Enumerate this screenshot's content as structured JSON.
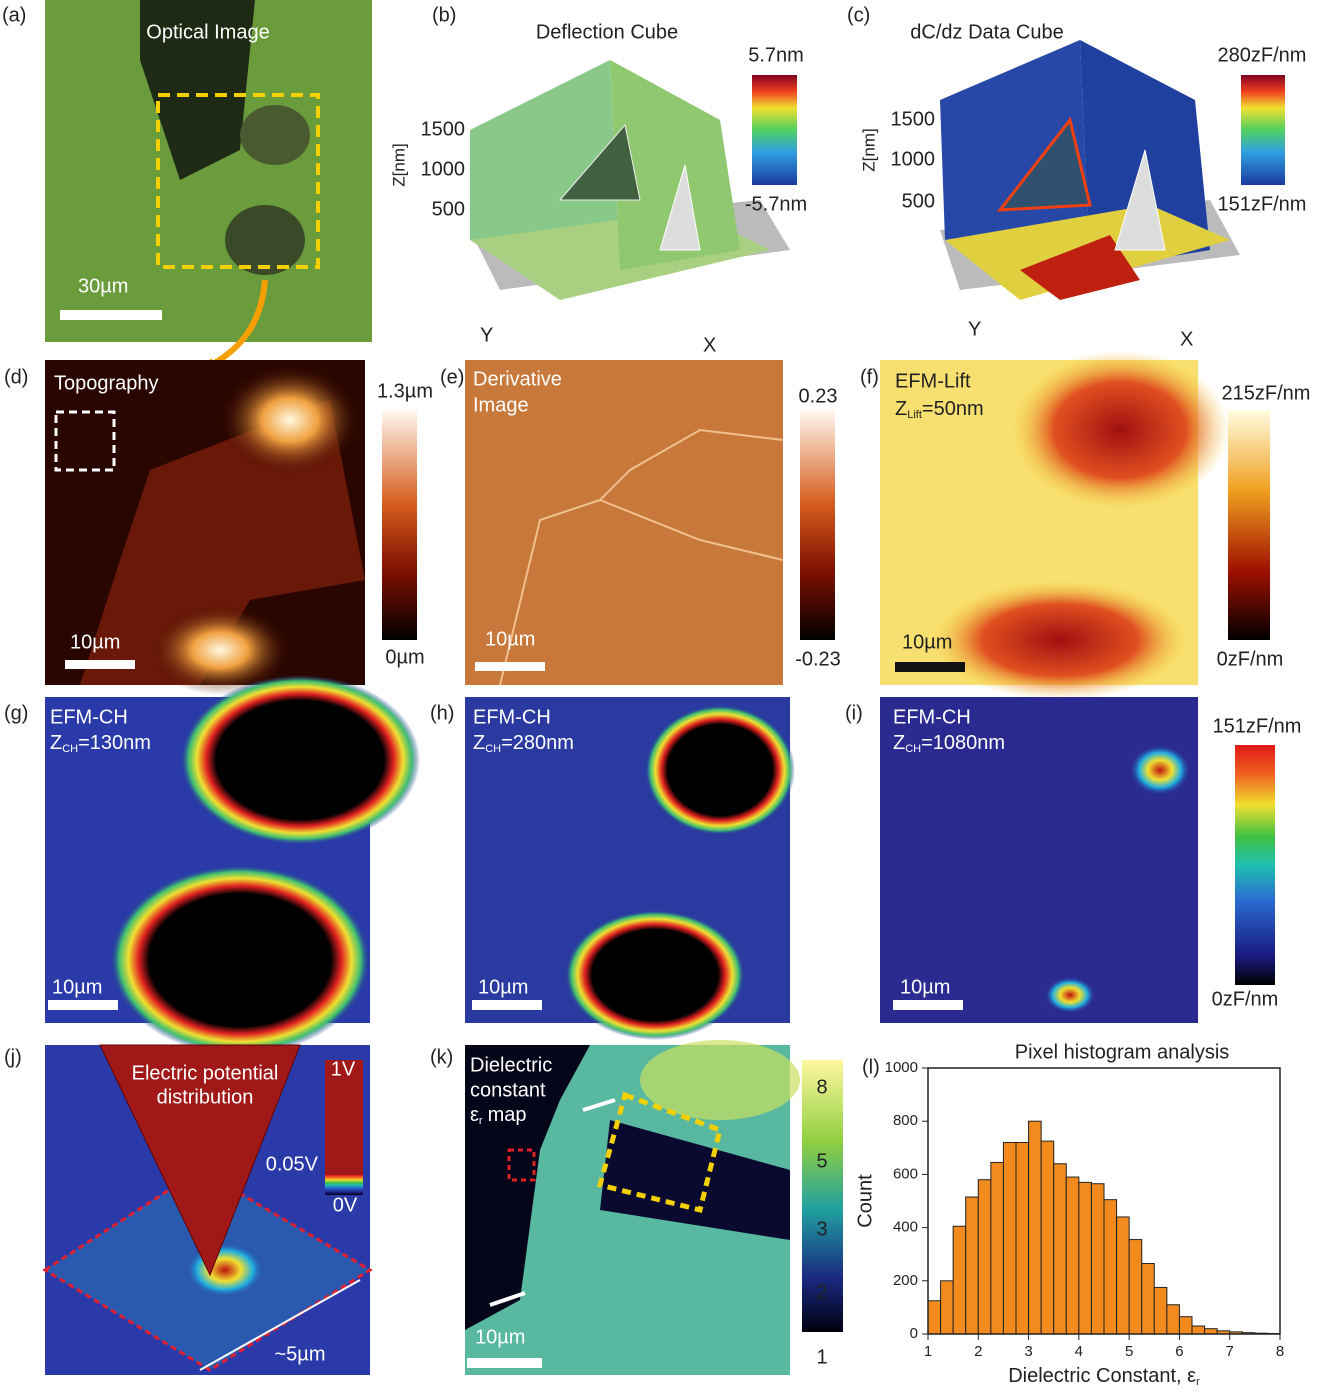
{
  "panels": {
    "a": {
      "label": "(a)",
      "title": "Optical Image",
      "scale_bar": "30µm"
    },
    "b": {
      "label": "(b)",
      "title": "Deflection Cube",
      "z_axis": "Z[nm]",
      "z_ticks": [
        1500,
        1000,
        500
      ],
      "x_axis": "X",
      "y_axis": "Y",
      "colorbar_max": "5.7nm",
      "colorbar_min": "-5.7nm"
    },
    "c": {
      "label": "(c)",
      "title": "dC/dz Data Cube",
      "z_axis": "Z[nm]",
      "z_ticks": [
        1500,
        1000,
        500
      ],
      "x_axis": "X",
      "y_axis": "Y",
      "colorbar_max": "280zF/nm",
      "colorbar_min": "151zF/nm"
    },
    "d": {
      "label": "(d)",
      "title": "Topography",
      "scale_bar": "10µm",
      "colorbar_max": "1.3µm",
      "colorbar_min": "0µm"
    },
    "e": {
      "label": "(e)",
      "title": [
        "Derivative",
        "Image"
      ],
      "scale_bar": "10µm",
      "colorbar_max": "0.23",
      "colorbar_min": "-0.23"
    },
    "f": {
      "label": "(f)",
      "title": "EFM-Lift",
      "height": {
        "symbol": "Z",
        "subscript": "Lift",
        "value": "=50nm"
      },
      "scale_bar": "10µm",
      "colorbar_max": "215zF/nm",
      "colorbar_min": "0zF/nm"
    },
    "g": {
      "label": "(g)",
      "title": "EFM-CH",
      "height": {
        "symbol": "Z",
        "subscript": "CH",
        "value": "=130nm"
      },
      "scale_bar": "10µm"
    },
    "h": {
      "label": "(h)",
      "title": "EFM-CH",
      "height": {
        "symbol": "Z",
        "subscript": "CH",
        "value": "=280nm"
      },
      "scale_bar": "10µm"
    },
    "i": {
      "label": "(i)",
      "title": "EFM-CH",
      "height": {
        "symbol": "Z",
        "subscript": "CH",
        "value": "=1080nm"
      },
      "scale_bar": "10µm",
      "colorbar_max": "151zF/nm",
      "colorbar_min": "0zF/nm"
    },
    "j": {
      "label": "(j)",
      "title": [
        "Electric potential",
        "distribution"
      ],
      "colorbar_labels": [
        "1V",
        "0.05V",
        "0V"
      ],
      "dimension": "~5µm"
    },
    "k": {
      "label": "(k)",
      "title": [
        "Dielectric",
        "constant"
      ],
      "symbol": "ε",
      "subscript": "r",
      "title_end": "map",
      "scale_bar": "10µm",
      "colorbar_labels": [
        8,
        5,
        3,
        2,
        1
      ]
    },
    "l": {
      "label": "(l)"
    }
  },
  "chart_data": {
    "type": "histogram",
    "title": "Pixel histogram analysis",
    "x_label": "Dielectric Constant, ε",
    "x_label_subscript": "r",
    "y_label": "Count",
    "bins": [
      1,
      1.25,
      1.5,
      1.75,
      2,
      2.25,
      2.5,
      2.75,
      3,
      3.25,
      3.5,
      3.75,
      4,
      4.25,
      4.5,
      4.75,
      5,
      5.25,
      5.5,
      5.75,
      6,
      6.25,
      6.5,
      6.75,
      7,
      7.25,
      7.5,
      7.75,
      8
    ],
    "values": [
      125,
      200,
      405,
      515,
      580,
      645,
      720,
      720,
      800,
      725,
      640,
      590,
      570,
      565,
      505,
      440,
      355,
      265,
      175,
      110,
      65,
      30,
      20,
      12,
      8,
      5,
      3,
      2
    ],
    "color": "#f28a1e",
    "xlim": [
      1,
      8
    ],
    "xticks": [
      1,
      2,
      3,
      4,
      5,
      6,
      7,
      8
    ],
    "ylim": [
      0,
      1000
    ],
    "yticks": [
      0,
      200,
      400,
      600,
      800,
      1000
    ]
  }
}
